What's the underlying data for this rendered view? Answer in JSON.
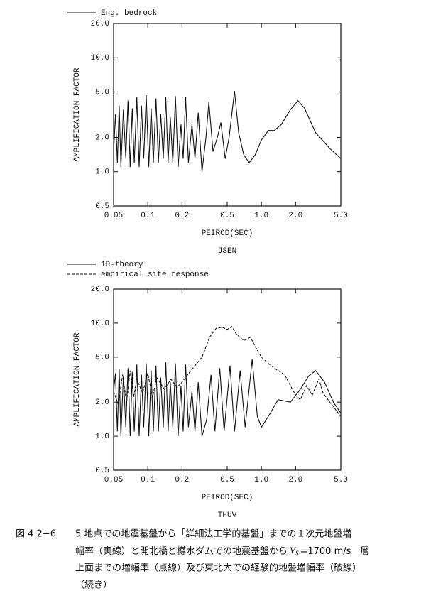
{
  "chart_data": [
    {
      "type": "line",
      "title": "JSEN",
      "xlabel": "PEIROD(SEC)",
      "ylabel": "AMPLIFICATION FACTOR",
      "xlog": true,
      "ylog": true,
      "grid": false,
      "xlim": [
        0.05,
        5.0
      ],
      "ylim": [
        0.5,
        20.0
      ],
      "xticks": [
        0.05,
        0.1,
        0.2,
        0.5,
        {
          "value": 1,
          "label": "1.0"
        },
        {
          "value": 2,
          "label": "2.0"
        },
        {
          "value": 5,
          "label": "5.0"
        }
      ],
      "yticks": [
        0.5,
        {
          "value": 1,
          "label": "1.0"
        },
        {
          "value": 2,
          "label": "2.0"
        },
        {
          "value": 5,
          "label": "5.0"
        },
        {
          "value": 10,
          "label": "10.0"
        },
        {
          "value": 20,
          "label": "20.0"
        }
      ],
      "series": [
        {
          "name": "Eng. bedrock",
          "color": "#111111",
          "dash": "solid",
          "x": [
            0.05,
            0.052,
            0.054,
            0.056,
            0.058,
            0.061,
            0.064,
            0.067,
            0.07,
            0.073,
            0.076,
            0.08,
            0.084,
            0.088,
            0.092,
            0.097,
            0.102,
            0.107,
            0.112,
            0.118,
            0.124,
            0.13,
            0.137,
            0.144,
            0.151,
            0.158,
            0.166,
            0.175,
            0.185,
            0.196,
            0.205,
            0.215,
            0.228,
            0.245,
            0.26,
            0.278,
            0.3,
            0.325,
            0.345,
            0.375,
            0.41,
            0.44,
            0.48,
            0.52,
            0.58,
            0.63,
            0.7,
            0.78,
            0.88,
            1.0,
            1.15,
            1.3,
            1.5,
            1.8,
            2.1,
            2.4,
            3.0,
            4.0,
            5.0
          ],
          "values": [
            1.5,
            3.2,
            1.2,
            3.8,
            1.1,
            3.5,
            1.3,
            4.2,
            1.1,
            3.6,
            1.2,
            4.5,
            1.1,
            3.8,
            1.3,
            4.7,
            1.1,
            3.6,
            1.2,
            4.4,
            1.2,
            3.2,
            1.3,
            4.5,
            1.2,
            3.0,
            1.2,
            4.6,
            1.1,
            2.6,
            1.3,
            4.5,
            1.2,
            2.6,
            1.3,
            3.3,
            1.0,
            2.0,
            4.1,
            1.5,
            2.0,
            2.7,
            1.3,
            2.0,
            5.1,
            2.2,
            1.4,
            1.2,
            1.4,
            1.9,
            2.3,
            2.3,
            2.6,
            3.5,
            4.2,
            3.6,
            2.2,
            1.6,
            1.3
          ]
        }
      ]
    },
    {
      "type": "line",
      "title": "THUV",
      "xlabel": "PEIROD(SEC)",
      "ylabel": "AMPLIFICATION FACTOR",
      "xlog": true,
      "ylog": true,
      "grid": false,
      "xlim": [
        0.05,
        5.0
      ],
      "ylim": [
        0.5,
        20.0
      ],
      "xticks": [
        0.05,
        0.1,
        0.2,
        0.5,
        {
          "value": 1,
          "label": "1.0"
        },
        {
          "value": 2,
          "label": "2.0"
        },
        {
          "value": 5,
          "label": "5.0"
        }
      ],
      "yticks": [
        0.5,
        {
          "value": 1,
          "label": "1.0"
        },
        {
          "value": 2,
          "label": "2.0"
        },
        {
          "value": 5,
          "label": "5.0"
        },
        {
          "value": 10,
          "label": "10.0"
        },
        {
          "value": 20,
          "label": "20.0"
        }
      ],
      "series": [
        {
          "name": "1D-theory",
          "color": "#111111",
          "dash": "solid",
          "x": [
            0.05,
            0.052,
            0.054,
            0.056,
            0.058,
            0.061,
            0.064,
            0.067,
            0.07,
            0.073,
            0.076,
            0.08,
            0.084,
            0.088,
            0.092,
            0.097,
            0.102,
            0.107,
            0.112,
            0.118,
            0.124,
            0.13,
            0.137,
            0.144,
            0.151,
            0.158,
            0.166,
            0.175,
            0.185,
            0.196,
            0.205,
            0.215,
            0.228,
            0.245,
            0.26,
            0.278,
            0.3,
            0.33,
            0.36,
            0.39,
            0.43,
            0.47,
            0.53,
            0.58,
            0.65,
            0.72,
            0.83,
            0.92,
            1.0,
            1.2,
            1.4,
            1.8,
            2.2,
            2.6,
            3.0,
            3.6,
            4.3,
            5.0
          ],
          "values": [
            2.5,
            3.6,
            1.1,
            3.9,
            1.0,
            3.4,
            1.2,
            4.0,
            1.0,
            3.7,
            1.1,
            4.3,
            1.0,
            3.5,
            1.2,
            4.4,
            1.0,
            3.8,
            1.1,
            4.2,
            1.1,
            3.3,
            1.2,
            4.5,
            1.1,
            3.0,
            1.2,
            4.4,
            1.0,
            2.8,
            1.1,
            4.3,
            1.2,
            2.5,
            1.1,
            3.0,
            1.0,
            1.4,
            3.5,
            1.1,
            4.0,
            1.1,
            4.2,
            1.1,
            3.8,
            1.2,
            4.8,
            1.5,
            1.2,
            1.6,
            2.1,
            2.0,
            2.6,
            3.4,
            3.8,
            3.0,
            2.0,
            1.6
          ]
        },
        {
          "name": "empirical site response",
          "color": "#111111",
          "dash": "dashed",
          "x": [
            0.05,
            0.055,
            0.06,
            0.065,
            0.07,
            0.075,
            0.08,
            0.09,
            0.1,
            0.11,
            0.12,
            0.14,
            0.16,
            0.18,
            0.2,
            0.23,
            0.26,
            0.3,
            0.35,
            0.4,
            0.45,
            0.5,
            0.55,
            0.6,
            0.7,
            0.8,
            0.9,
            1.0,
            1.15,
            1.3,
            1.6,
            2.0,
            2.2,
            2.5,
            2.8,
            3.2,
            3.5,
            4.0,
            5.0
          ],
          "values": [
            2.5,
            1.9,
            3.5,
            2.0,
            3.8,
            2.2,
            3.2,
            2.4,
            3.6,
            2.2,
            3.3,
            2.6,
            3.2,
            2.7,
            3.0,
            3.6,
            4.2,
            5.0,
            7.5,
            9.0,
            9.2,
            8.8,
            9.3,
            8.0,
            7.0,
            7.5,
            6.0,
            5.0,
            4.4,
            4.0,
            3.5,
            2.3,
            2.1,
            2.8,
            2.3,
            3.2,
            2.4,
            2.0,
            1.5
          ]
        }
      ]
    }
  ],
  "caption": {
    "label": "図 4.2−6",
    "line1": "5 地点での地震基盤から「詳細法工学的基盤」までの１次元地盤増",
    "line2": [
      "幅率（実線）と開北橋と樽水ダムでの地震基盤から",
      "V",
      "S",
      "=1700 m/s　層"
    ],
    "line3": "上面までの増幅率（点線）及び東北大での経験的地盤増幅率（破線）",
    "line4": "（続き）"
  }
}
